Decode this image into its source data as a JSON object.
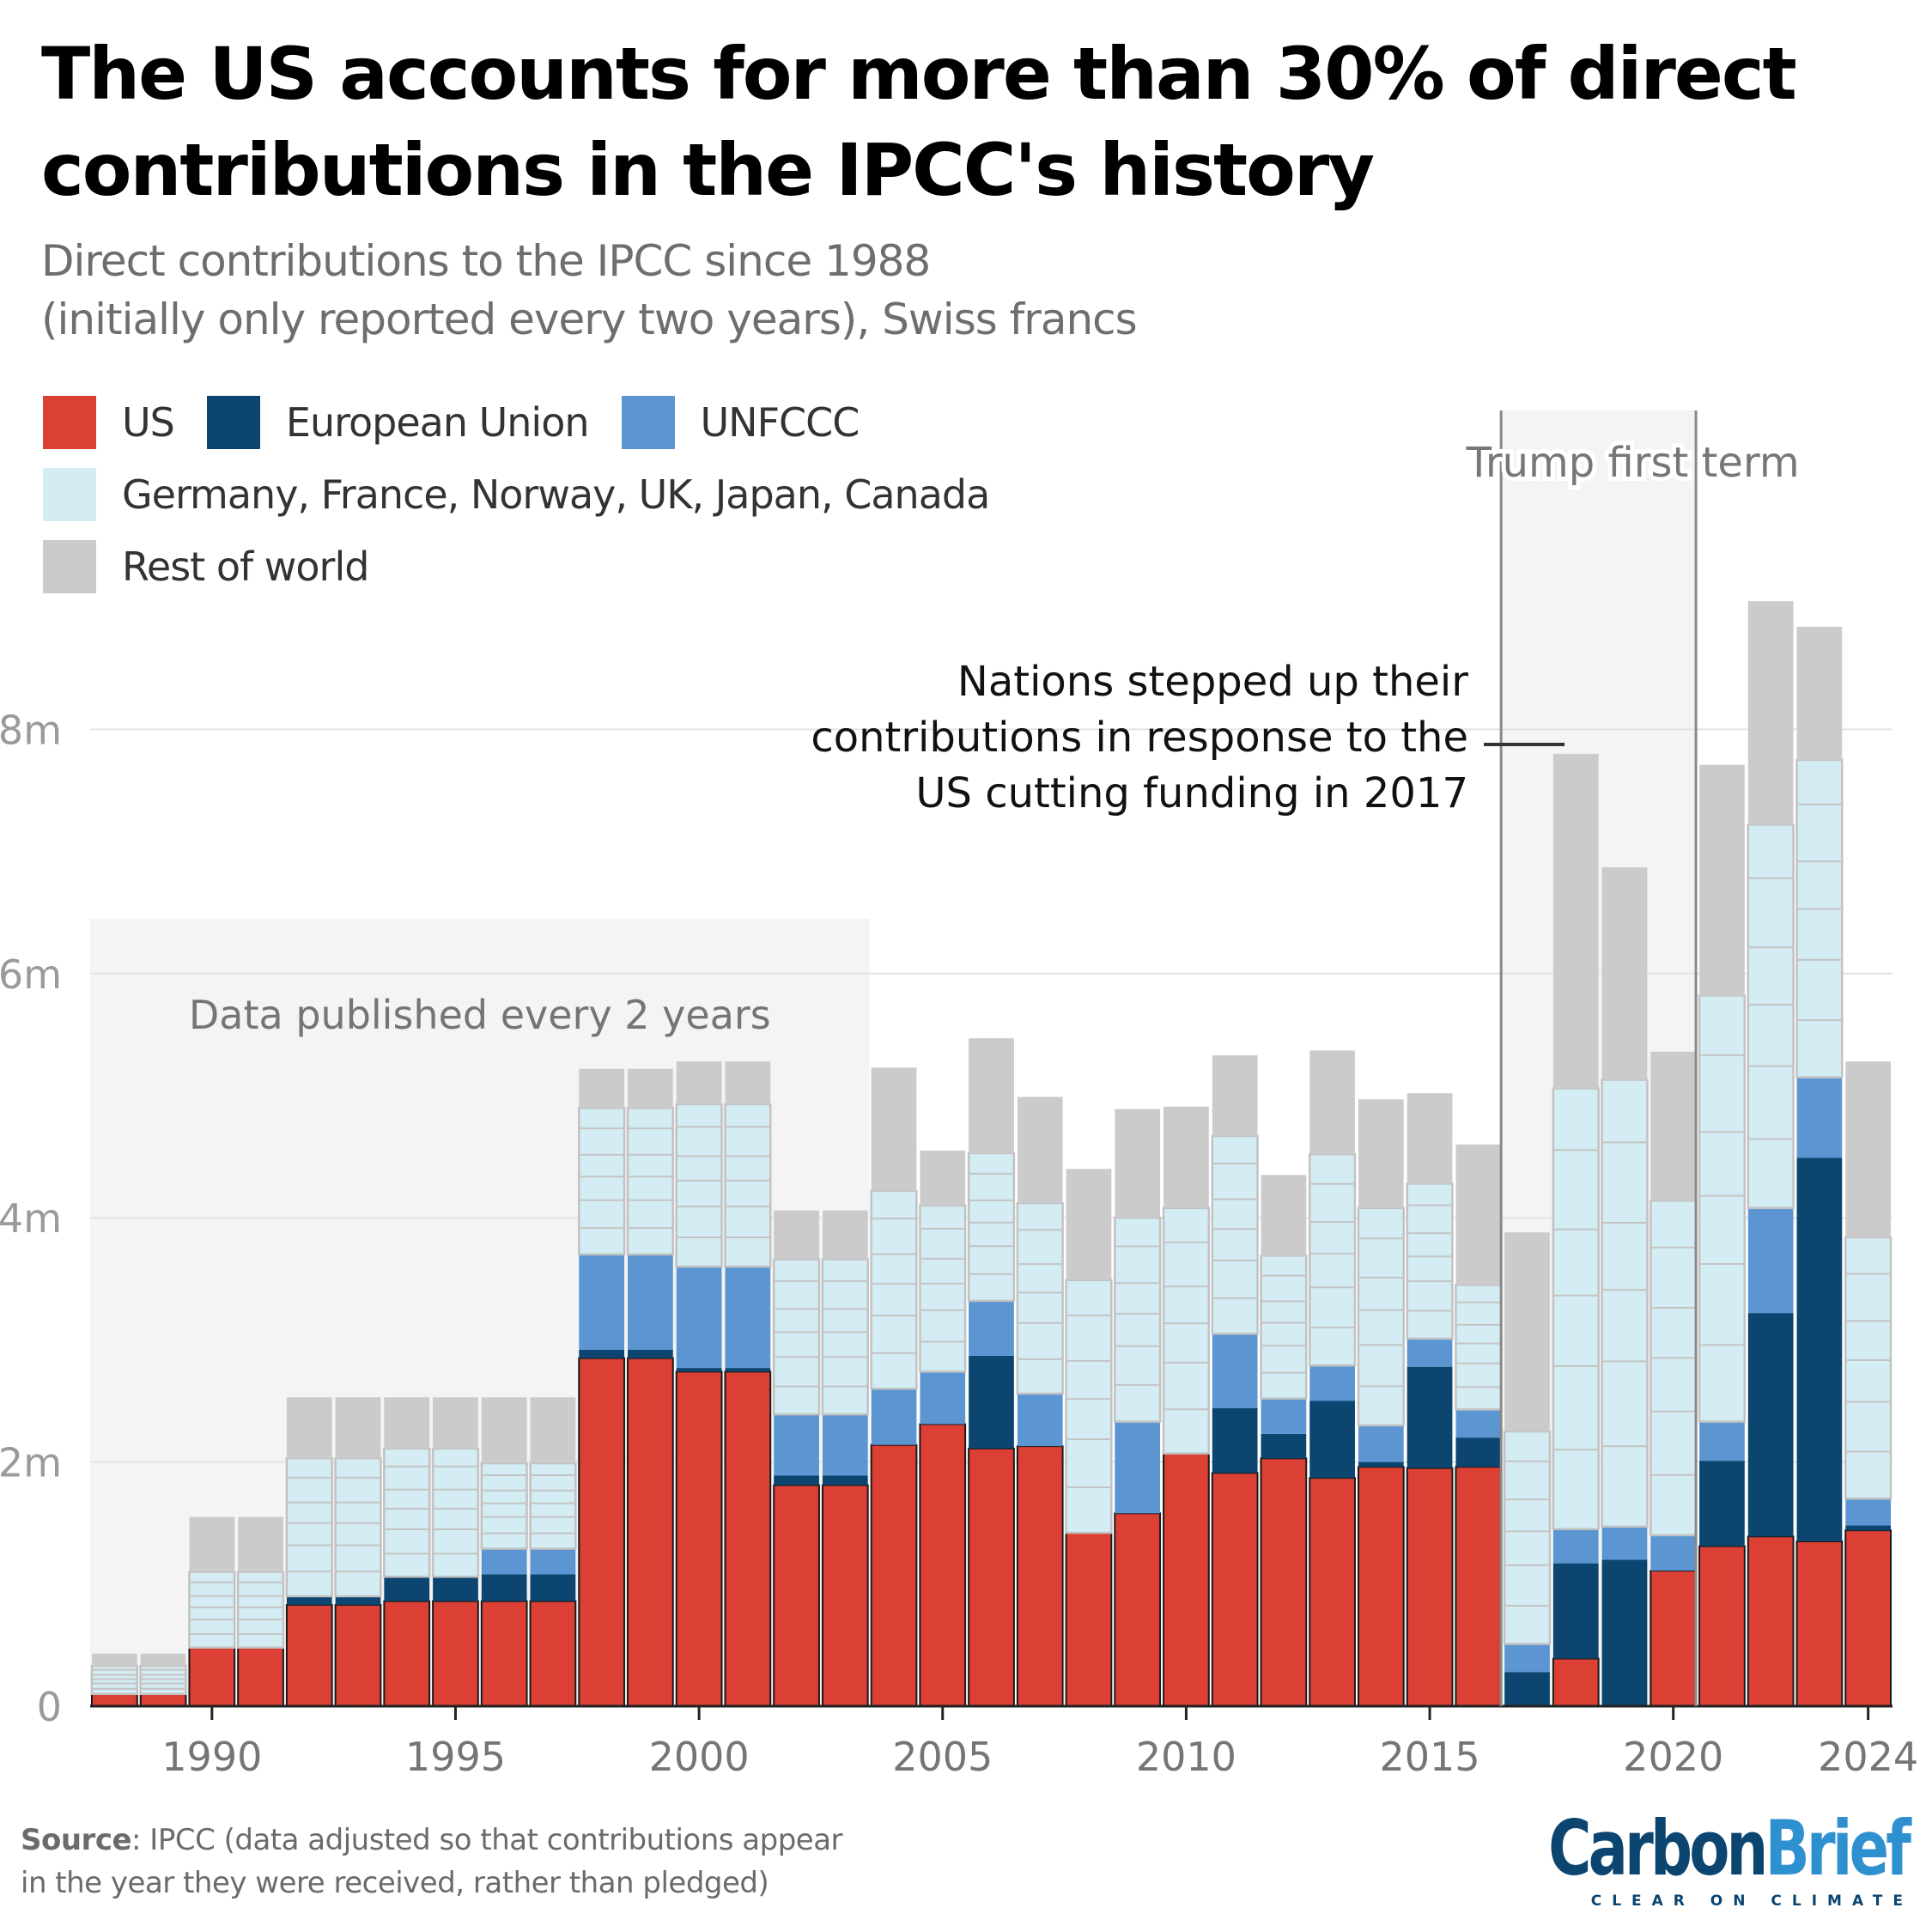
{
  "header": {
    "title": "The US accounts for more than 30% of direct contributions in the IPCC's history",
    "subtitle_line1": "Direct contributions to the IPCC since 1988",
    "subtitle_line2": "(initially only reported every two years), Swiss francs"
  },
  "legend": [
    {
      "key": "us",
      "label": "US",
      "color": "#dc3f33"
    },
    {
      "key": "eu",
      "label": "European Union",
      "color": "#0b4570"
    },
    {
      "key": "unfccc",
      "label": "UNFCCC",
      "color": "#5b96d3"
    },
    {
      "key": "g6",
      "label": "Germany, France, Norway, UK, Japan, Canada",
      "color": "#d4ecf3"
    },
    {
      "key": "row",
      "label": "Rest of world",
      "color": "#cbcbcb"
    }
  ],
  "annotations": {
    "biennial_band_label": "Data published every 2 years",
    "biennial_band_years": [
      1988,
      2003
    ],
    "trump_band_label": "Trump first term",
    "trump_band_years": [
      2017,
      2020
    ],
    "callout": [
      "Nations stepped up their",
      "contributions in response to the",
      "US cutting funding in 2017"
    ]
  },
  "footer": {
    "source_label": "Source",
    "source_text_line1": ": IPCC (data adjusted so that contributions appear",
    "source_text_line2": "in the year they were received, rather than pledged)",
    "logo_part1": "Carbon",
    "logo_part2": "Brief",
    "logo_tagline": "CLEAR ON CLIMATE"
  },
  "chart_data": {
    "type": "bar",
    "stacked": true,
    "title": "The US accounts for more than 30% of direct contributions in the IPCC's history",
    "subtitle": "Direct contributions to the IPCC since 1988 (initially only reported every two years), Swiss francs",
    "xlabel": "",
    "ylabel": "Swiss francs",
    "ylim": [
      0,
      9.5
    ],
    "yticks": [
      0,
      2,
      4,
      6,
      8
    ],
    "ytick_labels": [
      "0",
      "2m",
      "4m",
      "6m",
      "8m"
    ],
    "xtick_years": [
      1990,
      1995,
      2000,
      2005,
      2010,
      2015,
      2020,
      2024
    ],
    "xtick_labels": [
      "1990",
      "1995",
      "2000",
      "2005",
      "2010",
      "2015",
      "2020",
      "2024"
    ],
    "grid": true,
    "legend_position": "top-left",
    "units": "million CHF",
    "categories": [
      1988,
      1989,
      1990,
      1991,
      1992,
      1993,
      1994,
      1995,
      1996,
      1997,
      1998,
      1999,
      2000,
      2001,
      2002,
      2003,
      2004,
      2005,
      2006,
      2007,
      2008,
      2009,
      2010,
      2011,
      2012,
      2013,
      2014,
      2015,
      2016,
      2017,
      2018,
      2019,
      2020,
      2021,
      2022,
      2023,
      2024
    ],
    "series": [
      {
        "name": "US",
        "key": "us",
        "values": [
          0.1,
          0.1,
          0.48,
          0.48,
          0.83,
          0.83,
          0.86,
          0.86,
          0.86,
          0.86,
          2.85,
          2.85,
          2.74,
          2.74,
          1.81,
          1.81,
          2.14,
          2.31,
          2.11,
          2.13,
          1.42,
          1.58,
          2.07,
          1.91,
          2.03,
          1.87,
          1.96,
          1.95,
          1.96,
          0.0,
          0.39,
          0.0,
          1.11,
          1.31,
          1.39,
          1.35,
          1.44
        ]
      },
      {
        "name": "European Union",
        "key": "eu",
        "values": [
          0,
          0,
          0,
          0,
          0.07,
          0.07,
          0.2,
          0.2,
          0.22,
          0.22,
          0.07,
          0.07,
          0.03,
          0.03,
          0.08,
          0.08,
          0,
          0,
          0.76,
          0,
          0,
          0,
          0,
          0.53,
          0.2,
          0.63,
          0.04,
          0.83,
          0.24,
          0.28,
          0.78,
          1.2,
          0,
          0.7,
          1.83,
          3.14,
          0.04
        ]
      },
      {
        "name": "UNFCCC",
        "key": "unfccc",
        "values": [
          0,
          0,
          0,
          0,
          0,
          0,
          0,
          0,
          0.21,
          0.21,
          0.78,
          0.78,
          0.83,
          0.83,
          0.5,
          0.5,
          0.46,
          0.43,
          0.45,
          0.43,
          0,
          0.75,
          0,
          0.61,
          0.29,
          0.29,
          0.3,
          0.23,
          0.23,
          0.23,
          0.28,
          0.27,
          0.29,
          0.32,
          0.86,
          0.66,
          0.22
        ]
      },
      {
        "name": "Germany, France, Norway, UK, Japan, Canada",
        "key": "g6",
        "values": [
          0.23,
          0.23,
          0.62,
          0.62,
          1.13,
          1.13,
          1.05,
          1.05,
          0.7,
          0.7,
          1.2,
          1.2,
          1.33,
          1.33,
          1.27,
          1.27,
          1.62,
          1.36,
          1.21,
          1.56,
          2.07,
          1.67,
          2.01,
          1.62,
          1.17,
          1.73,
          1.78,
          1.27,
          1.02,
          1.74,
          3.61,
          3.66,
          2.74,
          3.49,
          3.14,
          2.6,
          2.14
        ]
      },
      {
        "name": "Rest of world",
        "key": "row",
        "values": [
          0.1,
          0.1,
          0.45,
          0.45,
          0.5,
          0.5,
          0.42,
          0.42,
          0.54,
          0.54,
          0.32,
          0.32,
          0.35,
          0.35,
          0.4,
          0.4,
          1.01,
          0.45,
          0.94,
          0.87,
          0.91,
          0.89,
          0.83,
          0.66,
          0.66,
          0.85,
          0.89,
          0.74,
          1.15,
          1.63,
          2.74,
          1.74,
          1.22,
          1.89,
          1.83,
          1.09,
          1.44
        ]
      }
    ]
  }
}
